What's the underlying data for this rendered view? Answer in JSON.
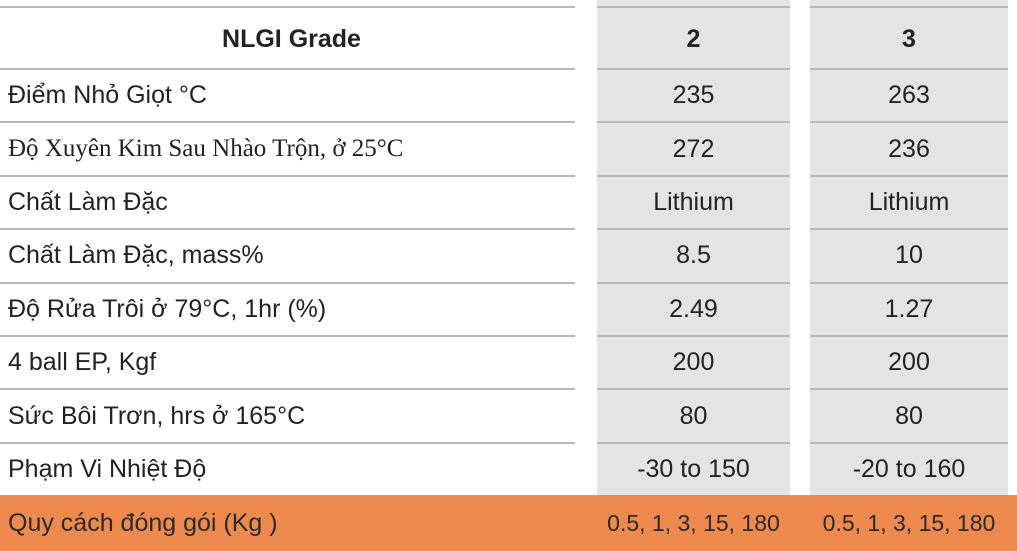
{
  "table": {
    "header": [
      "NLGI Grade",
      "2",
      "3"
    ],
    "rows": [
      [
        "Điểm Nhỏ Giọt °C",
        "235",
        "263"
      ],
      [
        "Độ Xuyên Kim Sau Nhào Trộn, ở 25°C",
        "272",
        "236"
      ],
      [
        "Chất Làm Đặc",
        "Lithium",
        "Lithium"
      ],
      [
        "Chất Làm Đặc, mass%",
        "8.5",
        "10"
      ],
      [
        "Độ Rửa Trôi ở 79°C, 1hr (%)",
        "2.49",
        "1.27"
      ],
      [
        "4 ball EP, Kgf",
        "200",
        "200"
      ],
      [
        "Sức Bôi Trơn, hrs ở 165°C",
        "80",
        "80"
      ],
      [
        "Phạm Vi Nhiệt Độ",
        "-30 to 150",
        "-20 to 160"
      ]
    ],
    "footer": [
      "Quy cách đóng gói (Kg )",
      "0.5, 1, 3, 15, 180",
      "0.5, 1, 3, 15, 180"
    ]
  }
}
